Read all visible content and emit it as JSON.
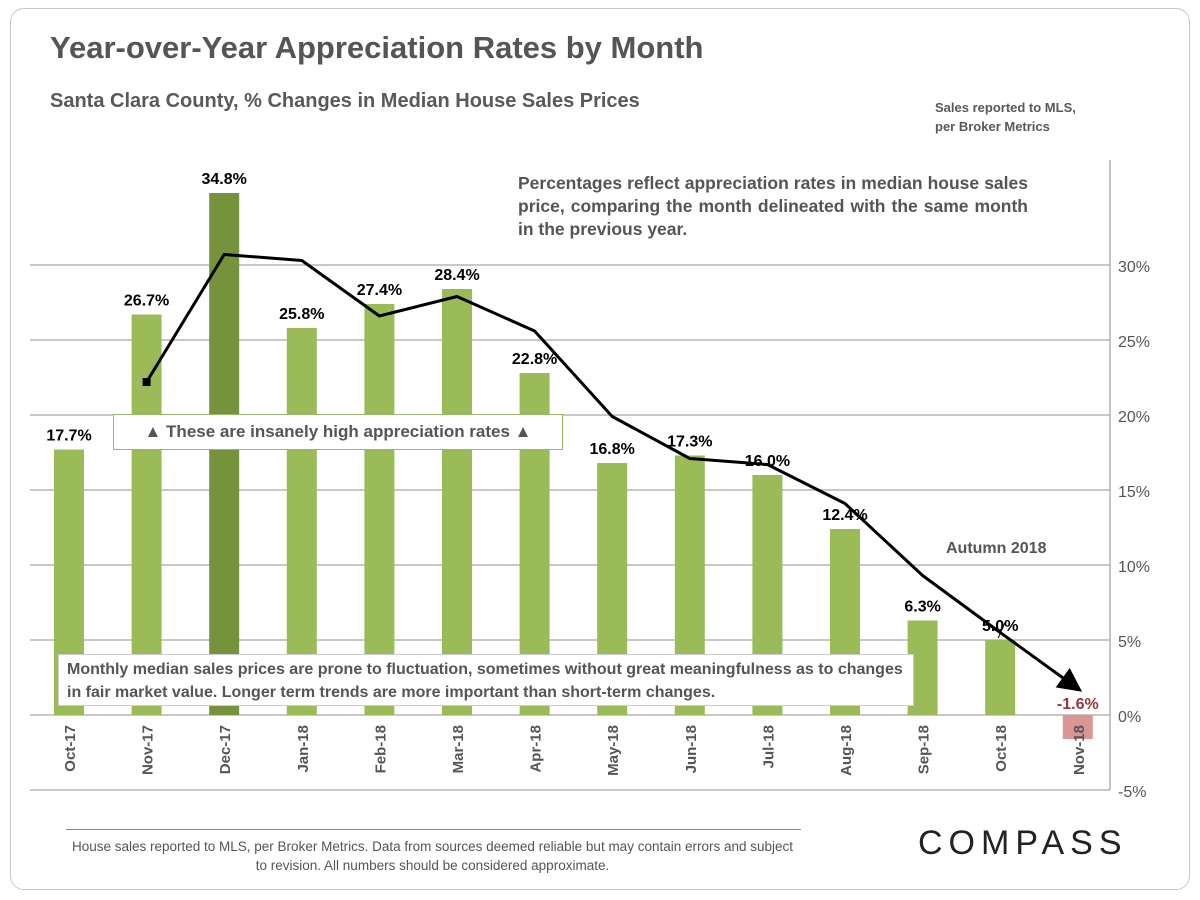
{
  "title": "Year-over-Year Appreciation Rates by Month",
  "subtitle": "Santa Clara County, % Changes in Median House Sales Prices",
  "source_note": [
    "Sales reported to MLS,",
    "per Broker Metrics"
  ],
  "annotations": {
    "explanation": "Percentages reflect appreciation rates in median house sales price, comparing the month delineated with the same month in the previous year.",
    "high_rates": "▲ These are insanely high appreciation rates ▲",
    "fluctuation": "Monthly median sales prices are prone to fluctuation, sometimes without great meaningfulness as to changes in fair market value. Longer term trends are more important than short-term changes.",
    "autumn": "Autumn 2018"
  },
  "footer": "House sales reported to MLS, per Broker Metrics. Data from sources deemed reliable but may contain errors and subject to revision.  All numbers should be considered approximate.",
  "logo": "COMPASS",
  "chart_data": {
    "type": "bar",
    "categories": [
      "Oct-17",
      "Nov-17",
      "Dec-17",
      "Jan-18",
      "Feb-18",
      "Mar-18",
      "Apr-18",
      "May-18",
      "Jun-18",
      "Jul-18",
      "Aug-18",
      "Sep-18",
      "Oct-18",
      "Nov-18"
    ],
    "values": [
      17.7,
      26.7,
      34.8,
      25.8,
      27.4,
      28.4,
      22.8,
      16.8,
      17.3,
      16.0,
      12.4,
      6.3,
      5.0,
      -1.6
    ],
    "data_labels": [
      "17.7%",
      "26.7%",
      "34.8%",
      "25.8%",
      "27.4%",
      "28.4%",
      "22.8%",
      "16.8%",
      "17.3%",
      "16.0%",
      "12.4%",
      "6.3%",
      "5.0%",
      "-1.6%"
    ],
    "trend_line": {
      "categories": [
        "Nov-17",
        "Dec-17",
        "Jan-18",
        "Feb-18",
        "Mar-18",
        "Apr-18",
        "May-18",
        "Jun-18",
        "Jul-18",
        "Aug-18",
        "Sep-18",
        "Oct-18",
        "Nov-18"
      ],
      "values": [
        22.2,
        30.7,
        30.3,
        26.6,
        27.9,
        25.6,
        19.9,
        17.1,
        16.7,
        14.1,
        9.3,
        5.5,
        1.9
      ],
      "arrow_end": true
    },
    "y_ticks": [
      "30%",
      "25%",
      "20%",
      "15%",
      "10%",
      "5%",
      "0%",
      "-5%"
    ],
    "ylim": [
      -5,
      35
    ],
    "y_axis_side": "right",
    "grid": true,
    "colors": {
      "bar": "#9bbb59",
      "highlight_bar": "#76923c",
      "negative_bar": "#d99694",
      "negative_label": "#953735",
      "line": "#000000",
      "grid": "#a6a6a6"
    },
    "highlight_category": "Dec-17"
  }
}
